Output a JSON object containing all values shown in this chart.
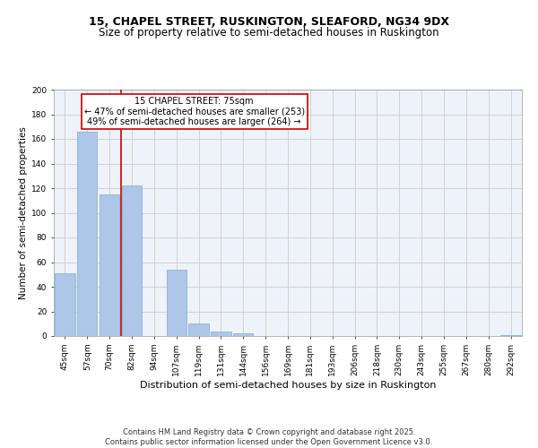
{
  "title1": "15, CHAPEL STREET, RUSKINGTON, SLEAFORD, NG34 9DX",
  "title2": "Size of property relative to semi-detached houses in Ruskington",
  "xlabel": "Distribution of semi-detached houses by size in Ruskington",
  "ylabel": "Number of semi-detached properties",
  "categories": [
    "45sqm",
    "57sqm",
    "70sqm",
    "82sqm",
    "94sqm",
    "107sqm",
    "119sqm",
    "131sqm",
    "144sqm",
    "156sqm",
    "169sqm",
    "181sqm",
    "193sqm",
    "206sqm",
    "218sqm",
    "230sqm",
    "243sqm",
    "255sqm",
    "267sqm",
    "280sqm",
    "292sqm"
  ],
  "values": [
    51,
    166,
    115,
    122,
    0,
    54,
    10,
    4,
    2,
    0,
    0,
    0,
    0,
    0,
    0,
    0,
    0,
    0,
    0,
    0,
    1
  ],
  "bar_color": "#aec6e8",
  "bar_edge_color": "#7bafd4",
  "marker_line_color": "#cc0000",
  "annotation_text": "15 CHAPEL STREET: 75sqm\n← 47% of semi-detached houses are smaller (253)\n49% of semi-detached houses are larger (264) →",
  "annotation_box_color": "#ffffff",
  "annotation_border_color": "#cc0000",
  "ylim": [
    0,
    200
  ],
  "yticks": [
    0,
    20,
    40,
    60,
    80,
    100,
    120,
    140,
    160,
    180,
    200
  ],
  "grid_color": "#cccccc",
  "background_color": "#eef2f9",
  "footer_text": "Contains HM Land Registry data © Crown copyright and database right 2025.\nContains public sector information licensed under the Open Government Licence v3.0.",
  "title1_fontsize": 9,
  "title2_fontsize": 8.5,
  "xlabel_fontsize": 8,
  "ylabel_fontsize": 7.5,
  "tick_fontsize": 6.5,
  "annotation_fontsize": 7,
  "footer_fontsize": 6
}
